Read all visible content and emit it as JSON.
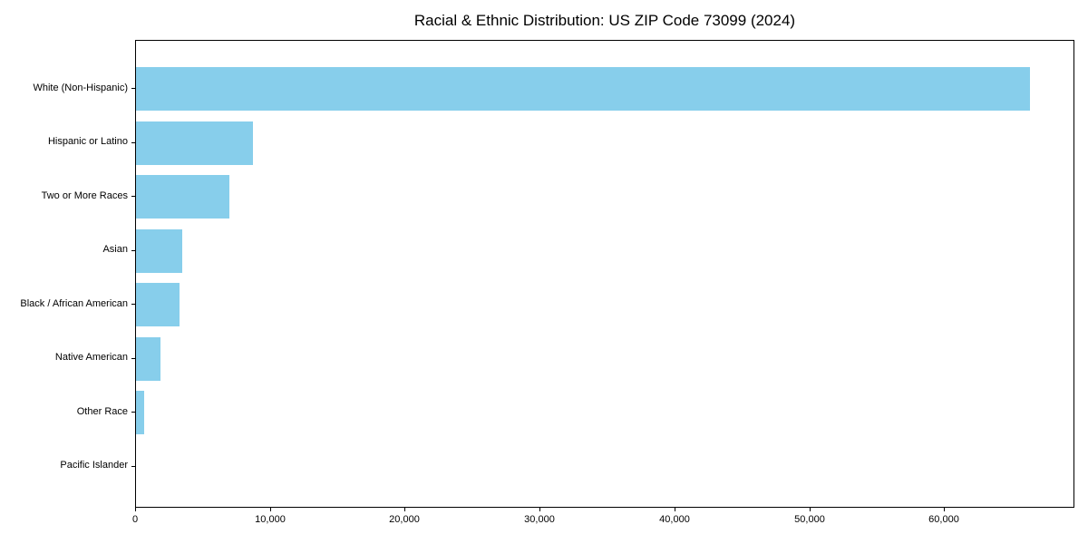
{
  "chart_data": {
    "type": "bar",
    "orientation": "horizontal",
    "title": "Racial & Ethnic Distribution: US ZIP Code 73099 (2024)",
    "categories": [
      "White (Non-Hispanic)",
      "Hispanic or Latino",
      "Two or More Races",
      "Asian",
      "Black / African American",
      "Native American",
      "Other Race",
      "Pacific Islander"
    ],
    "values": [
      66300,
      8700,
      6900,
      3400,
      3250,
      1800,
      600,
      0
    ],
    "xlabel": "",
    "ylabel": "",
    "xlim": [
      0,
      69670
    ],
    "x_ticks": [
      0,
      10000,
      20000,
      30000,
      40000,
      50000,
      60000
    ],
    "x_tick_labels": [
      "0",
      "10,000",
      "20,000",
      "30,000",
      "40,000",
      "50,000",
      "60,000"
    ],
    "bar_color": "#87CEEB",
    "grid": false,
    "legend": "none",
    "background_color": "#ffffff"
  }
}
